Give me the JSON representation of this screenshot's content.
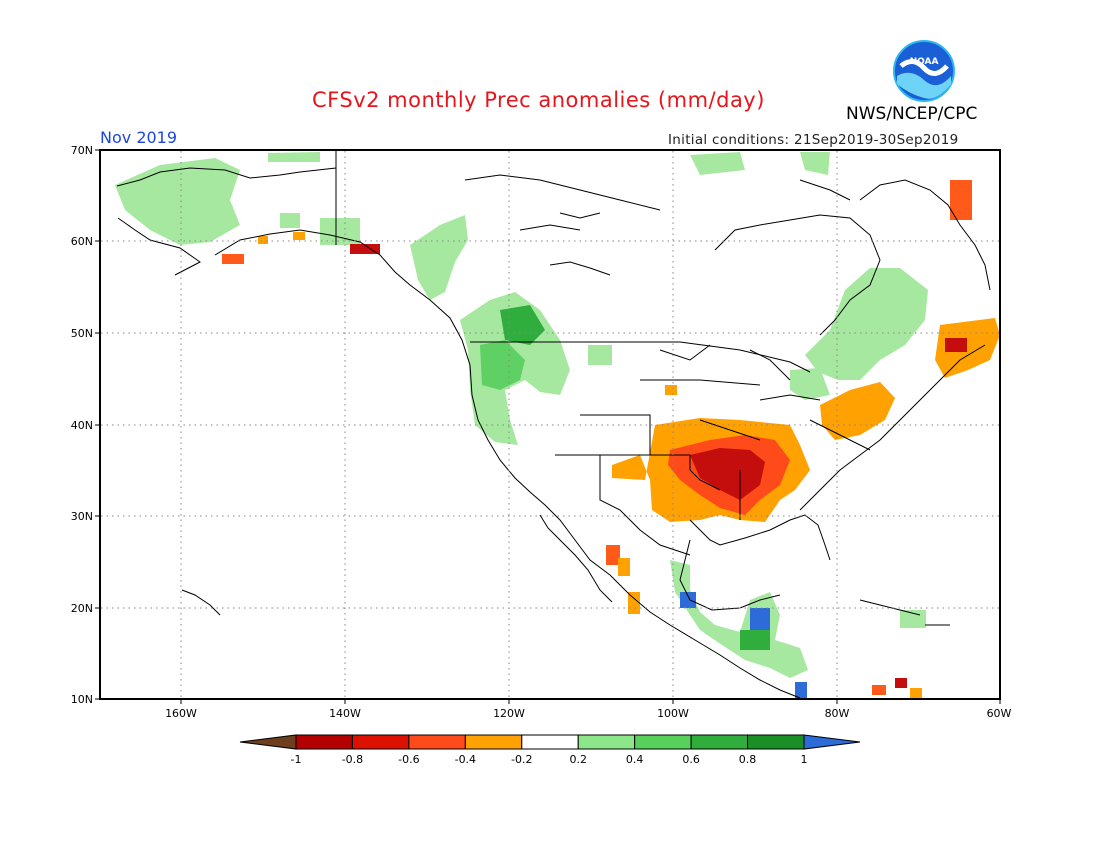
{
  "header": {
    "title": "CFSv2 monthly Prec anomalies (mm/day)",
    "month": "Nov 2019",
    "initial_conditions": "Initial conditions: 21Sep2019-30Sep2019",
    "agency": "NWS/NCEP/CPC",
    "logo_text": "NOAA"
  },
  "map": {
    "lat_labels": [
      "70N",
      "60N",
      "50N",
      "40N",
      "30N",
      "20N",
      "10N"
    ],
    "lon_labels": [
      "160W",
      "140W",
      "120W",
      "100W",
      "80W",
      "60W"
    ]
  },
  "colorbar": {
    "ticks": [
      "-1",
      "-0.8",
      "-0.6",
      "-0.4",
      "-0.2",
      "0.2",
      "0.4",
      "0.6",
      "0.8",
      "1"
    ],
    "colors": [
      "#6e3f1f",
      "#b30000",
      "#dd1100",
      "#ff4a1a",
      "#ffa100",
      "#ffffff",
      "#8ee68a",
      "#57d15c",
      "#2fad3d",
      "#1b8f27",
      "#2c6bd8"
    ]
  }
}
